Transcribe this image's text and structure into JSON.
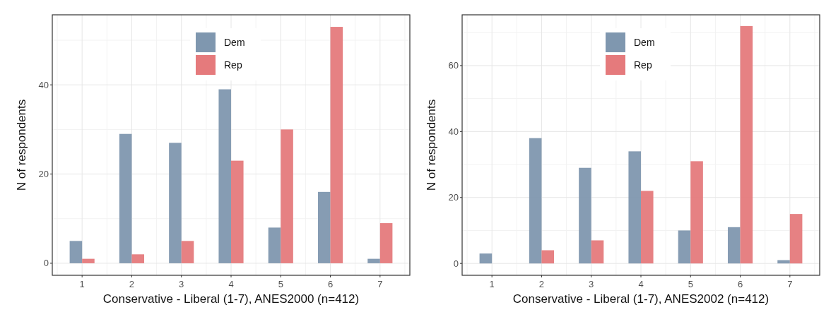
{
  "chart_data": [
    {
      "type": "bar",
      "xlabel": "Conservative - Liberal (1-7), ANES2000 (n=412)",
      "ylabel": "N of respondents",
      "categories": [
        "1",
        "2",
        "3",
        "4",
        "5",
        "6",
        "7"
      ],
      "series": [
        {
          "name": "Dem",
          "color": "#7f97af",
          "values": [
            5,
            29,
            27,
            39,
            8,
            16,
            1
          ]
        },
        {
          "name": "Rep",
          "color": "#e57a7c",
          "values": [
            1,
            2,
            5,
            23,
            30,
            53,
            9
          ]
        }
      ],
      "ylim": [
        -2.7,
        55.7
      ],
      "yticks": [
        0,
        20,
        40
      ],
      "grid": true,
      "legend": "top"
    },
    {
      "type": "bar",
      "xlabel": "Conservative - Liberal (1-7), ANES2002 (n=412)",
      "ylabel": "N of respondents",
      "categories": [
        "1",
        "2",
        "3",
        "4",
        "5",
        "6",
        "7"
      ],
      "series": [
        {
          "name": "Dem",
          "color": "#7f97af",
          "values": [
            3,
            38,
            29,
            34,
            10,
            11,
            1
          ]
        },
        {
          "name": "Rep",
          "color": "#e57a7c",
          "values": [
            null,
            4,
            7,
            22,
            31,
            72,
            15
          ]
        }
      ],
      "ylim": [
        -3.6,
        75.4
      ],
      "yticks": [
        0,
        20,
        40,
        60
      ],
      "grid": true,
      "legend": "top"
    }
  ]
}
